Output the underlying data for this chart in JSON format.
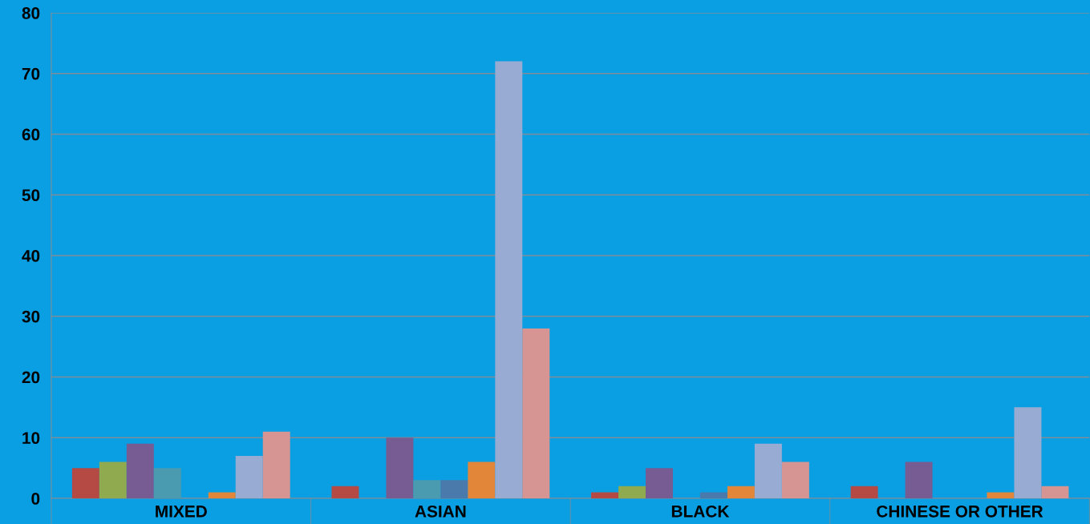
{
  "chart_data": {
    "type": "bar",
    "categories": [
      "MIXED",
      "ASIAN",
      "BLACK",
      "CHINESE OR OTHER"
    ],
    "series": [
      {
        "color": "#b54a45",
        "values": [
          5,
          2,
          1,
          2
        ]
      },
      {
        "color": "#8faa4f",
        "values": [
          6,
          0,
          2,
          0
        ]
      },
      {
        "color": "#775c93",
        "values": [
          9,
          10,
          5,
          6
        ]
      },
      {
        "color": "#4a9bb0",
        "values": [
          5,
          3,
          0,
          0
        ]
      },
      {
        "color": "#4a7aab",
        "values": [
          0,
          3,
          1,
          0
        ]
      },
      {
        "color": "#e2873a",
        "values": [
          1,
          6,
          2,
          1
        ]
      },
      {
        "color": "#98abd3",
        "values": [
          7,
          72,
          9,
          15
        ]
      },
      {
        "color": "#d69492",
        "values": [
          11,
          28,
          6,
          2
        ]
      }
    ],
    "ylim": [
      0,
      80
    ],
    "yticks": [
      0,
      10,
      20,
      30,
      40,
      50,
      60,
      70,
      80
    ],
    "grid": "y"
  }
}
